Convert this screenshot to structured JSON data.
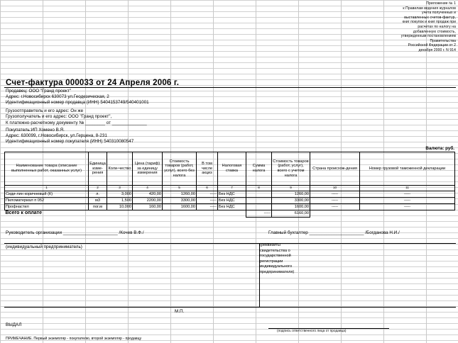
{
  "appendix": {
    "lines": [
      "Приложение № 1",
      "к Правилам ведения журналов",
      "учета полученных и",
      "выставленных счетов-фактур,",
      "книг покупок и книг продаж при",
      "расчетах по налогу на",
      "добавленную стоимость,",
      "утвержденным постановлением",
      "Правительства",
      "Российской Федерации от 2",
      "декабря 2000 г. N 914"
    ]
  },
  "invoice": {
    "title": "Счет-фактура 000033 от 24 Апреля 2006 г.",
    "seller": "Продавец: ООО \"Гранд проект\"",
    "seller_address": "Адрес: г.Новосибирск 630073 ул.Геодезическая, 2",
    "seller_inn": "Идентификационный номер продавца (ИНН) 5404153749/540401001",
    "shipper": "Грузоотправитель и его адрес: Он же",
    "consignee": "Грузополучатель и его адрес: ООО \"Гранд проект\",",
    "payment_doc": "К платежно-расчетному документу №  ________ от  ______________",
    "buyer": "Покупатель:ИП Хомено В.Я.",
    "buyer_address": "Адрес: 630099, г.Новосибирск, ул.Герцена, 8-231",
    "buyer_inn": "Идентификационный номер покупателя (ИНН) 540310080547",
    "currency": "Валюта: руб."
  },
  "table": {
    "headers": [
      "Наименование товара (описание выполненных работ, оказанных услуг)",
      "Единица изме-рения",
      "Коли-чество",
      "Цена (тариф) за единицу измерения",
      "Стоимость товаров (работ, услуг), всего без налога",
      "В том числе акциз",
      "Налоговая ставка",
      "Сумма налога",
      "Стоимость товаров (работ, услуг), всего с учетом налога",
      "Страна происхож-дения",
      "Номер грузовой таможенной декларации"
    ],
    "numbers": [
      "1",
      "2",
      "3",
      "4",
      "5",
      "6",
      "7",
      "8",
      "9",
      "10",
      "11"
    ],
    "rows": [
      [
        "Сиди-лин коричневый (К)",
        "л.",
        "3,000",
        "420,00",
        "1260,00",
        "-----",
        "Без НДС",
        "",
        "1260,00",
        "-----",
        "-----"
      ],
      [
        "Пиломатериал п 052",
        "м3",
        "1,500",
        "2200,00",
        "3300,00",
        "-----",
        "Без НДС",
        "",
        "3300,00",
        "-----",
        "-----"
      ],
      [
        "Профнастил",
        "пог.м",
        "10,000",
        "160,00",
        "1600,00",
        "-----",
        "Без НДС",
        "",
        "1600,00",
        "-----",
        "-----"
      ]
    ],
    "total_label": "Всего к оплате",
    "total_tax": "-----",
    "total_sum": "6160,00"
  },
  "signatures": {
    "head": "Руководитель организации ______________________ /Кочев В.Ф./",
    "accountant": "Главный бухгалтер  ______________________ /Богданова Н.И./",
    "entrepreneur": "(индивидуальный предприниматель)",
    "requisites": "(реквизиты свидетельства о государственной регистрации индивидуального предпринимателя)",
    "stamp": "М.П.",
    "issued": "ВЫДАЛ",
    "responsible_caption": "(подпись ответственного лица от продавца)",
    "note": "ПРИМЕЧАНИЕ. Первый экземпляр - покупателю, второй экземпляр - продавцу"
  }
}
